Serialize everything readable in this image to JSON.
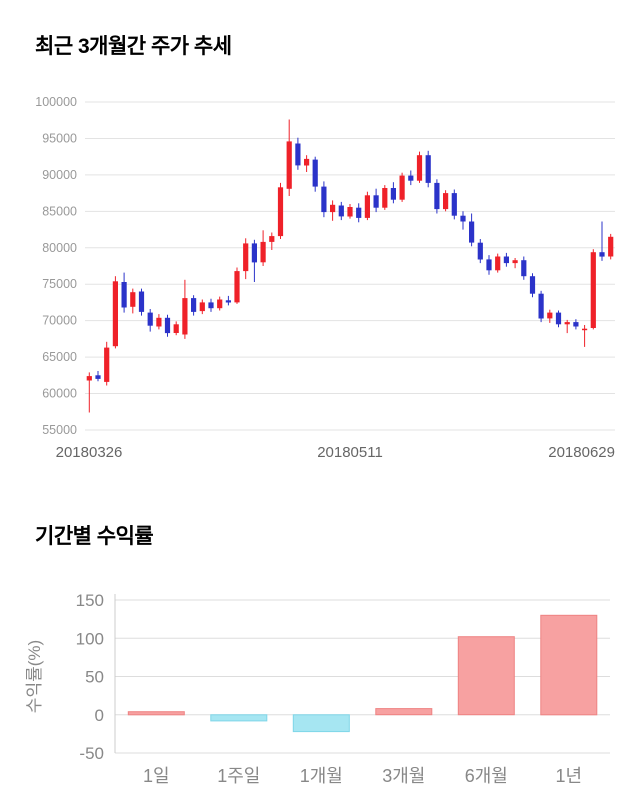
{
  "price_section": {
    "title": "최근 3개월간 주가 추세"
  },
  "returns_section": {
    "title": "기간별 수익률"
  },
  "colors": {
    "candle_up": "#ef2129",
    "candle_down": "#2b33c9",
    "grid": "#e3e3e3",
    "axis_text": "#888888"
  },
  "chart_data": [
    {
      "type": "candlestick",
      "title": "최근 3개월간 주가 추세",
      "ylim": [
        55000,
        100000
      ],
      "yticks": [
        55000,
        60000,
        65000,
        70000,
        75000,
        80000,
        85000,
        90000,
        95000,
        100000
      ],
      "xticks": [
        "20180326",
        "20180511",
        "20180629"
      ],
      "up_color": "#ef2129",
      "down_color": "#2b33c9",
      "grid": true,
      "candles_format": [
        "open",
        "high",
        "low",
        "close"
      ],
      "candles": [
        [
          61800,
          62900,
          57400,
          62400
        ],
        [
          62500,
          63100,
          61700,
          62000
        ],
        [
          61600,
          67100,
          61100,
          66300
        ],
        [
          66500,
          76100,
          66200,
          75400
        ],
        [
          75300,
          76600,
          71100,
          71800
        ],
        [
          71900,
          74400,
          71000,
          73900
        ],
        [
          74000,
          74400,
          70700,
          71200
        ],
        [
          71100,
          71600,
          68500,
          69300
        ],
        [
          69200,
          70900,
          68800,
          70400
        ],
        [
          70400,
          70800,
          67800,
          68300
        ],
        [
          68300,
          69900,
          68000,
          69500
        ],
        [
          68100,
          75600,
          67500,
          73100
        ],
        [
          73100,
          73500,
          70700,
          71200
        ],
        [
          71300,
          72900,
          70900,
          72500
        ],
        [
          72500,
          73000,
          71200,
          71700
        ],
        [
          71700,
          73300,
          71400,
          72900
        ],
        [
          72800,
          73400,
          72100,
          72500
        ],
        [
          72500,
          77300,
          72300,
          76800
        ],
        [
          76800,
          81300,
          75700,
          80600
        ],
        [
          80600,
          81100,
          75300,
          78000
        ],
        [
          78000,
          82400,
          77500,
          80800
        ],
        [
          80800,
          82100,
          79700,
          81600
        ],
        [
          81600,
          88900,
          81200,
          88300
        ],
        [
          88100,
          97600,
          87100,
          94600
        ],
        [
          94300,
          95100,
          90700,
          91300
        ],
        [
          91300,
          92700,
          90400,
          92200
        ],
        [
          92100,
          92500,
          87700,
          88400
        ],
        [
          88400,
          89100,
          84200,
          84900
        ],
        [
          84900,
          86500,
          83700,
          85900
        ],
        [
          85800,
          86300,
          83800,
          84300
        ],
        [
          84300,
          86000,
          84000,
          85600
        ],
        [
          85500,
          86100,
          83500,
          84100
        ],
        [
          84100,
          87700,
          83800,
          87200
        ],
        [
          87200,
          88100,
          84900,
          85500
        ],
        [
          85500,
          88600,
          85200,
          88200
        ],
        [
          88200,
          89000,
          86100,
          86600
        ],
        [
          86600,
          90300,
          86300,
          89900
        ],
        [
          89900,
          90600,
          88600,
          89200
        ],
        [
          89200,
          93200,
          88900,
          92700
        ],
        [
          92700,
          93300,
          88300,
          88900
        ],
        [
          88900,
          89400,
          84700,
          85300
        ],
        [
          85300,
          87900,
          85000,
          87500
        ],
        [
          87500,
          88000,
          83900,
          84400
        ],
        [
          84400,
          85000,
          82500,
          83600
        ],
        [
          83600,
          84700,
          80200,
          80700
        ],
        [
          80700,
          81200,
          77900,
          78400
        ],
        [
          78400,
          79000,
          76300,
          76900
        ],
        [
          76900,
          79200,
          76600,
          78800
        ],
        [
          78800,
          79300,
          77400,
          77900
        ],
        [
          77900,
          78600,
          77200,
          78300
        ],
        [
          78300,
          78800,
          75600,
          76100
        ],
        [
          76100,
          76500,
          73200,
          73700
        ],
        [
          73700,
          74100,
          69800,
          70300
        ],
        [
          70300,
          71500,
          69700,
          71100
        ],
        [
          71100,
          71400,
          69100,
          69500
        ],
        [
          69500,
          70100,
          68300,
          69800
        ],
        [
          69800,
          70200,
          68800,
          69200
        ],
        [
          68700,
          69400,
          66400,
          68900
        ],
        [
          69000,
          79800,
          68800,
          79400
        ],
        [
          79400,
          83600,
          78200,
          78800
        ],
        [
          78800,
          81900,
          78400,
          81500
        ]
      ]
    },
    {
      "type": "bar",
      "title": "기간별 수익률",
      "categories": [
        "1일",
        "1주일",
        "1개월",
        "3개월",
        "6개월",
        "1년"
      ],
      "values": [
        4,
        -8,
        -22,
        8,
        102,
        130
      ],
      "ylabel": "수익률(%)",
      "ylim": [
        -50,
        150
      ],
      "yticks": [
        150,
        100,
        50,
        0,
        -50
      ],
      "grid": true,
      "positive_color": "#f7a1a1",
      "positive_border": "#ee8383",
      "negative_color": "#a6e6f2",
      "negative_border": "#7fd6e8"
    }
  ]
}
